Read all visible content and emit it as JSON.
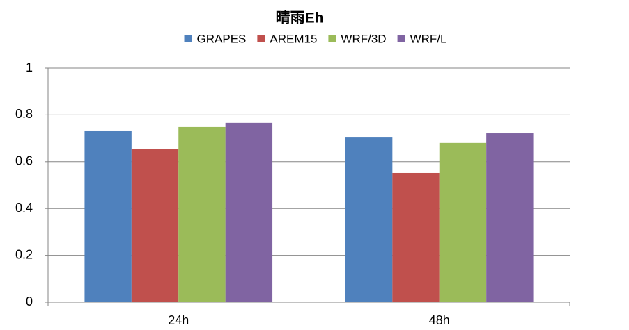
{
  "chart_data": {
    "type": "bar",
    "title": "晴雨Eh",
    "categories": [
      "24h",
      "48h"
    ],
    "series": [
      {
        "name": "GRAPES",
        "color": "#4f81bd",
        "values": [
          0.733,
          0.706
        ]
      },
      {
        "name": "AREM15",
        "color": "#c0504d",
        "values": [
          0.653,
          0.552
        ]
      },
      {
        "name": "WRF/3D",
        "color": "#9bbb59",
        "values": [
          0.748,
          0.68
        ]
      },
      {
        "name": "WRF/L",
        "color": "#8064a2",
        "values": [
          0.766,
          0.721
        ]
      }
    ],
    "ylim": [
      0,
      1
    ],
    "yticks": [
      0,
      0.2,
      0.4,
      0.6,
      0.8,
      1
    ],
    "grid": true,
    "legend": "top"
  }
}
